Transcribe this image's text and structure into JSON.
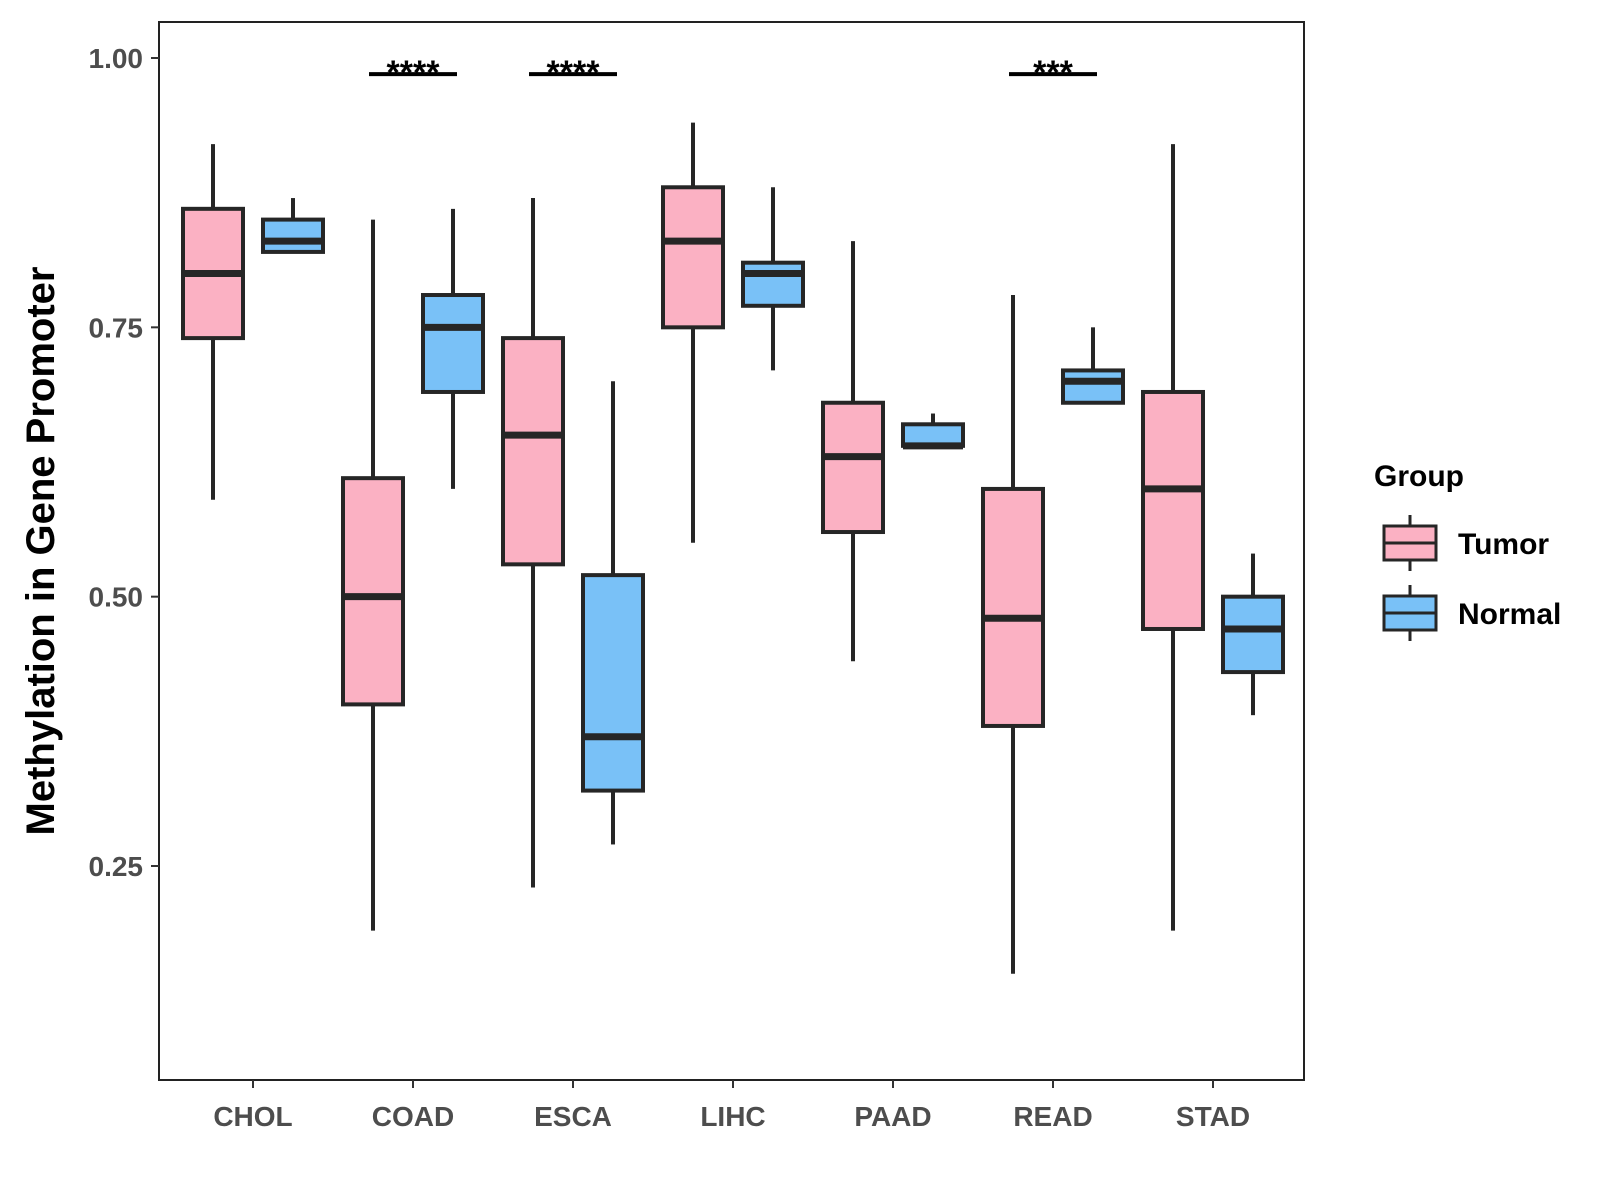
{
  "chart_data": {
    "type": "box",
    "title": "",
    "xlabel": "",
    "ylabel": "Methylation in Gene Promoter",
    "ylim": [
      0.05,
      1.03
    ],
    "yticks": [
      0.25,
      0.5,
      0.75,
      1.0
    ],
    "ytick_labels": [
      "0.25",
      "0.50",
      "0.75",
      "1.00"
    ],
    "categories": [
      "CHOL",
      "COAD",
      "ESCA",
      "LIHC",
      "PAAD",
      "READ",
      "STAD"
    ],
    "legend": {
      "title": "Group",
      "position": "right",
      "items": [
        {
          "name": "Tumor",
          "color": "#fbb1c3"
        },
        {
          "name": "Normal",
          "color": "#79c1f7"
        }
      ]
    },
    "series": [
      {
        "name": "Tumor",
        "color": "#fbb1c3",
        "boxes": [
          {
            "category": "CHOL",
            "min": 0.59,
            "q1": 0.74,
            "median": 0.8,
            "q3": 0.86,
            "max": 0.92
          },
          {
            "category": "COAD",
            "min": 0.19,
            "q1": 0.4,
            "median": 0.5,
            "q3": 0.61,
            "max": 0.85
          },
          {
            "category": "ESCA",
            "min": 0.23,
            "q1": 0.53,
            "median": 0.65,
            "q3": 0.74,
            "max": 0.87
          },
          {
            "category": "LIHC",
            "min": 0.55,
            "q1": 0.75,
            "median": 0.83,
            "q3": 0.88,
            "max": 0.94
          },
          {
            "category": "PAAD",
            "min": 0.44,
            "q1": 0.56,
            "median": 0.63,
            "q3": 0.68,
            "max": 0.83
          },
          {
            "category": "READ",
            "min": 0.15,
            "q1": 0.38,
            "median": 0.48,
            "q3": 0.6,
            "max": 0.78
          },
          {
            "category": "STAD",
            "min": 0.19,
            "q1": 0.47,
            "median": 0.6,
            "q3": 0.69,
            "max": 0.92
          }
        ]
      },
      {
        "name": "Normal",
        "color": "#79c1f7",
        "boxes": [
          {
            "category": "CHOL",
            "min": 0.82,
            "q1": 0.82,
            "median": 0.83,
            "q3": 0.85,
            "max": 0.87
          },
          {
            "category": "COAD",
            "min": 0.6,
            "q1": 0.69,
            "median": 0.75,
            "q3": 0.78,
            "max": 0.86
          },
          {
            "category": "ESCA",
            "min": 0.27,
            "q1": 0.32,
            "median": 0.37,
            "q3": 0.52,
            "max": 0.7
          },
          {
            "category": "LIHC",
            "min": 0.71,
            "q1": 0.77,
            "median": 0.8,
            "q3": 0.81,
            "max": 0.88
          },
          {
            "category": "PAAD",
            "min": 0.64,
            "q1": 0.64,
            "median": 0.64,
            "q3": 0.66,
            "max": 0.67
          },
          {
            "category": "READ",
            "min": 0.68,
            "q1": 0.68,
            "median": 0.7,
            "q3": 0.71,
            "max": 0.75
          },
          {
            "category": "STAD",
            "min": 0.39,
            "q1": 0.43,
            "median": 0.47,
            "q3": 0.5,
            "max": 0.54
          }
        ]
      }
    ],
    "annotations": [
      {
        "category": "COAD",
        "label": "****",
        "y": 0.985
      },
      {
        "category": "ESCA",
        "label": "****",
        "y": 0.985
      },
      {
        "category": "READ",
        "label": "***",
        "y": 0.985
      }
    ]
  }
}
